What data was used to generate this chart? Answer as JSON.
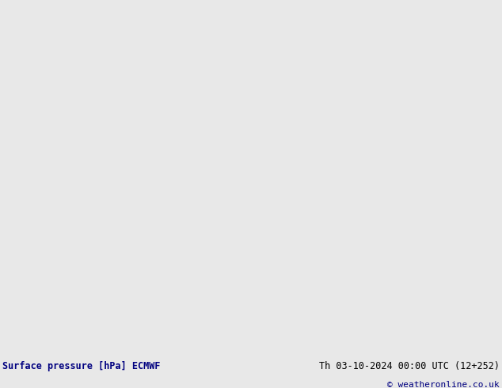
{
  "title_bottom_left": "Surface pressure [hPa] ECMWF",
  "title_bottom_right": "Th 03-10-2024 00:00 UTC (12+252)",
  "copyright": "© weatheronline.co.uk",
  "bg_color": "#e8e8e8",
  "land_color": "#c8e8c0",
  "gray_color": "#b0b0b0",
  "ocean_color": "#dcdcdc",
  "isobar_blue": "#0000dd",
  "isobar_black": "#000000",
  "isobar_red": "#cc0000",
  "fig_width": 6.34,
  "fig_height": 4.9,
  "dpi": 100,
  "map_extent": [
    -175,
    -40,
    15,
    85
  ],
  "bottom_text_color": "#000080",
  "bottom_bg": "#d8d8d8"
}
